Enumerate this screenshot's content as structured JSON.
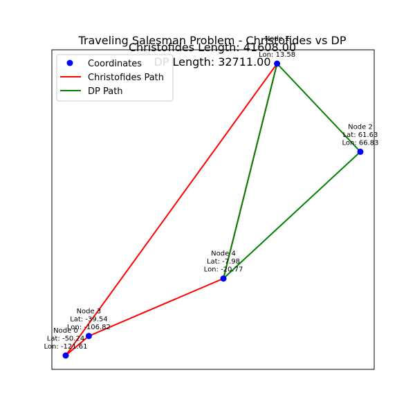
{
  "chart_data": {
    "type": "scatter",
    "title": "Traveling Salesman Problem - Christofides vs DP",
    "subtitle_lines": [
      "Christofides Length: 41608.00",
      "DP Length: 32711.00"
    ],
    "xlabel": "",
    "ylabel": "",
    "grid": false,
    "legend_position": "top-left",
    "axis_ticks_visible": false,
    "nodes": [
      {
        "id": 0,
        "label": "Node 0",
        "lat": -50.24,
        "lon": -121.61,
        "lat_text": "Lat: -50.24",
        "lon_text": "Lon: -121.61"
      },
      {
        "id": 1,
        "label": "Node 1",
        "lat": 110.0,
        "lon": 13.58,
        "lat_text": "",
        "lon_text": "Lon: 13.58"
      },
      {
        "id": 2,
        "label": "Node 2",
        "lat": 61.63,
        "lon": 66.83,
        "lat_text": "Lat: 61.63",
        "lon_text": "Lon: 66.83"
      },
      {
        "id": 3,
        "label": "Node 3",
        "lat": -39.54,
        "lon": -106.82,
        "lat_text": "Lat: -39.54",
        "lon_text": "Lon: -106.82"
      },
      {
        "id": 4,
        "label": "Node 4",
        "lat": -7.98,
        "lon": -20.77,
        "lat_text": "Lat: -7.98",
        "lon_text": "Lon: -20.77"
      }
    ],
    "series": [
      {
        "name": "Coordinates",
        "kind": "points",
        "color": "#0000ff"
      },
      {
        "name": "Christofides Path",
        "kind": "path",
        "color": "#ff0000",
        "order": [
          0,
          1,
          4,
          3,
          0
        ]
      },
      {
        "name": "DP Path",
        "kind": "path",
        "color": "#008000",
        "order": [
          1,
          2,
          4,
          1
        ]
      }
    ],
    "legend": [
      {
        "label": "Coordinates",
        "marker": "dot",
        "color": "#0000ff"
      },
      {
        "label": "Christofides Path",
        "marker": "line",
        "color": "#ff0000"
      },
      {
        "label": "DP Path",
        "marker": "line",
        "color": "#008000"
      }
    ]
  }
}
